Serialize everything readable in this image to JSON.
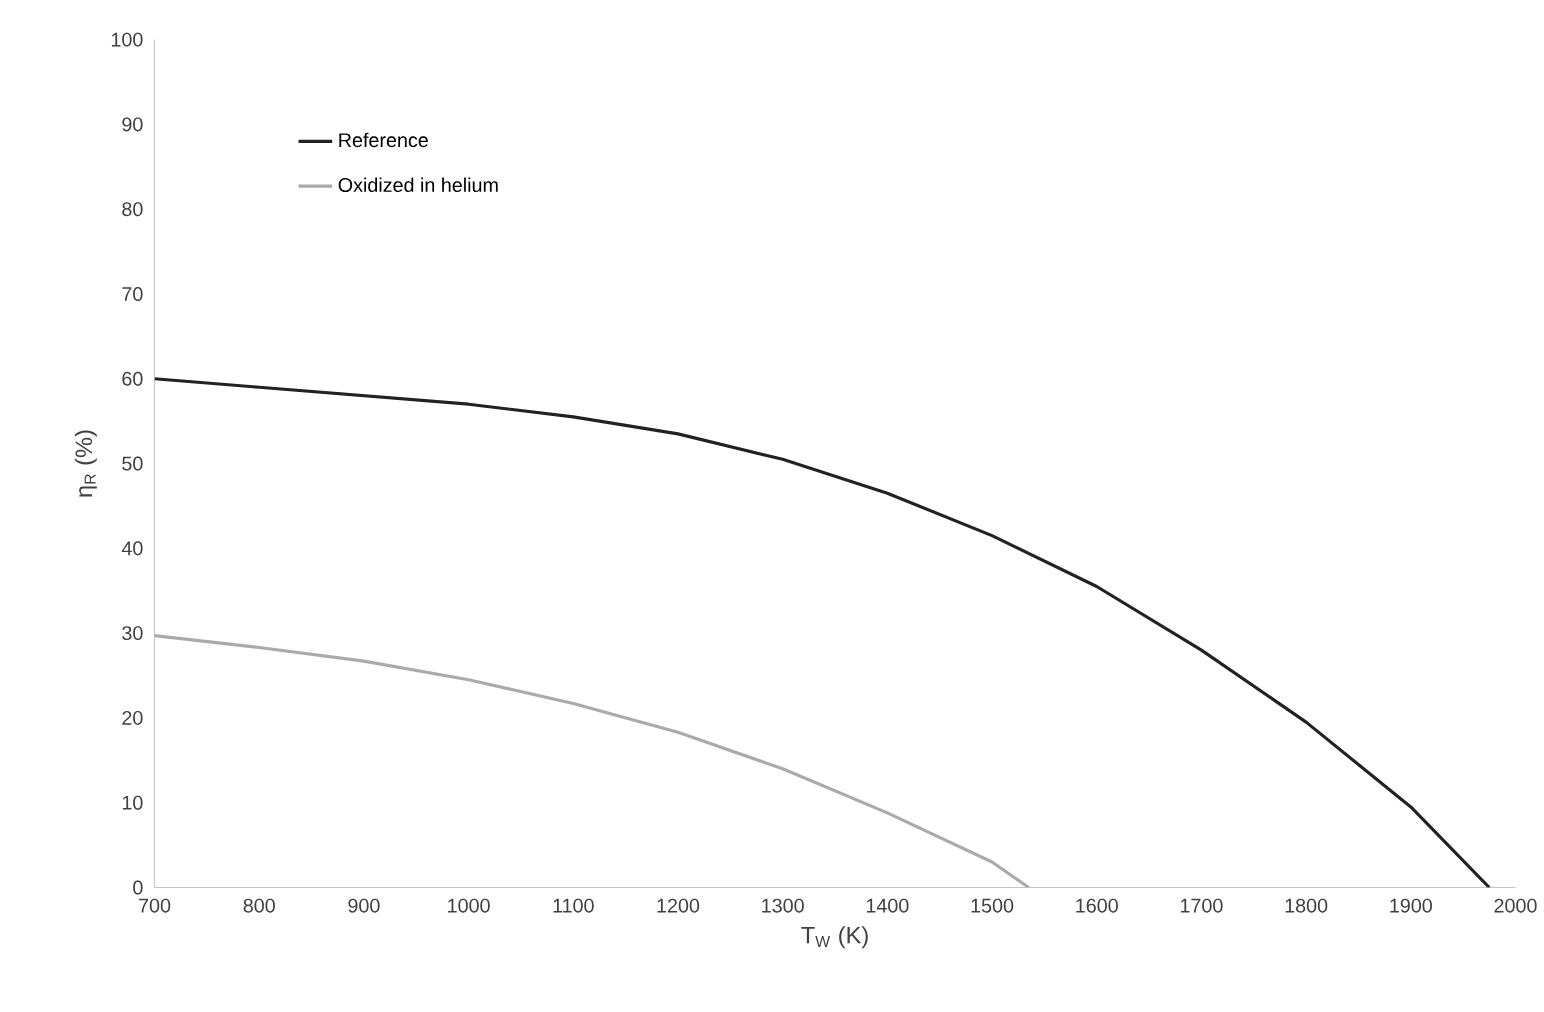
{
  "chart_data": {
    "type": "line",
    "xlabel": "T$_{W}$ (K)",
    "ylabel": "η$_{R}$ (%)",
    "xlim": [
      700,
      2000
    ],
    "ylim": [
      0,
      100
    ],
    "xticks": [
      700,
      800,
      900,
      1000,
      1100,
      1200,
      1300,
      1400,
      1500,
      1600,
      1700,
      1800,
      1900,
      2000
    ],
    "yticks": [
      0,
      10,
      20,
      30,
      40,
      50,
      60,
      70,
      80,
      90,
      100
    ],
    "legend": "top left",
    "series": [
      {
        "name": "Reference",
        "color": "#222222",
        "x": [
          700,
          800,
          900,
          1000,
          1100,
          1200,
          1300,
          1400,
          1500,
          1600,
          1700,
          1800,
          1900,
          1975
        ],
        "values": [
          60,
          59,
          58,
          57,
          55.5,
          53.5,
          50.5,
          46.5,
          41.5,
          35.5,
          28,
          19.5,
          9.5,
          0
        ]
      },
      {
        "name": "Oxidized in helium",
        "color": "#aaaaaa",
        "x": [
          700,
          800,
          900,
          1000,
          1100,
          1200,
          1300,
          1400,
          1500,
          1535
        ],
        "values": [
          29.7,
          28.3,
          26.7,
          24.5,
          21.7,
          18.3,
          14,
          8.8,
          3,
          0
        ]
      }
    ]
  }
}
